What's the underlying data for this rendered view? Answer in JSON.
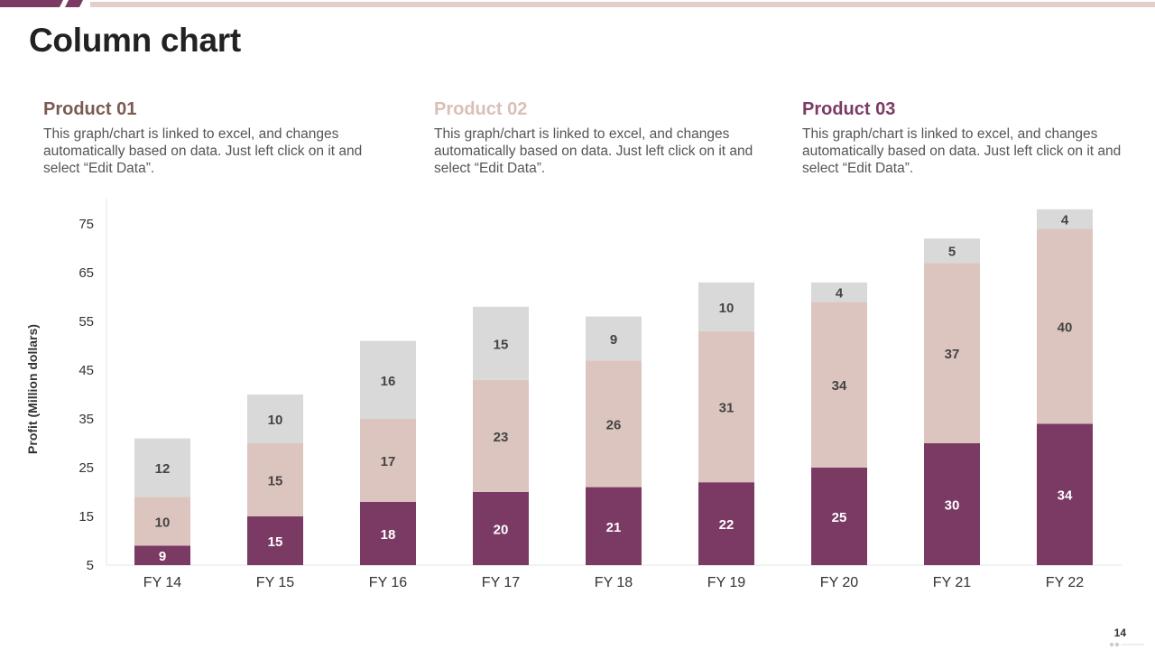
{
  "slide": {
    "title": "Column chart",
    "page_number": "14"
  },
  "colors": {
    "product01": "#7b3a64",
    "product02": "#dcc5bf",
    "product03": "#d9d9d9",
    "product01_heading": "#7b5a52",
    "product02_heading": "#d9bfb8",
    "product03_heading": "#7b3a64",
    "topbar_dark": "#7b3a64",
    "topbar_light": "#e2cfca"
  },
  "products": [
    {
      "name": "Product 01",
      "description": "This graph/chart is linked to excel, and changes automatically based on data. Just left click on it and select “Edit Data”."
    },
    {
      "name": "Product 02",
      "description": "This graph/chart is linked to excel, and changes automatically based on data. Just left click on it and select “Edit Data”."
    },
    {
      "name": "Product 03",
      "description": "This graph/chart is linked to excel, and changes automatically based on data. Just left click on it and select “Edit Data”."
    }
  ],
  "chart_data": {
    "type": "bar",
    "stacked": true,
    "title": "",
    "xlabel": "",
    "ylabel": "Profit  (Million dollars)",
    "ylim": [
      5,
      75
    ],
    "yticks": [
      5,
      15,
      25,
      35,
      45,
      55,
      65,
      75
    ],
    "grid": false,
    "categories": [
      "FY 14",
      "FY 15",
      "FY 16",
      "FY 17",
      "FY 18",
      "FY 19",
      "FY 20",
      "FY 21",
      "FY 22"
    ],
    "series": [
      {
        "name": "Product 01",
        "values": [
          9,
          15,
          18,
          20,
          21,
          22,
          25,
          30,
          34
        ]
      },
      {
        "name": "Product 02",
        "values": [
          10,
          15,
          17,
          23,
          26,
          31,
          34,
          37,
          40
        ]
      },
      {
        "name": "Product 03",
        "values": [
          12,
          10,
          16,
          15,
          9,
          10,
          4,
          5,
          4
        ]
      }
    ]
  }
}
